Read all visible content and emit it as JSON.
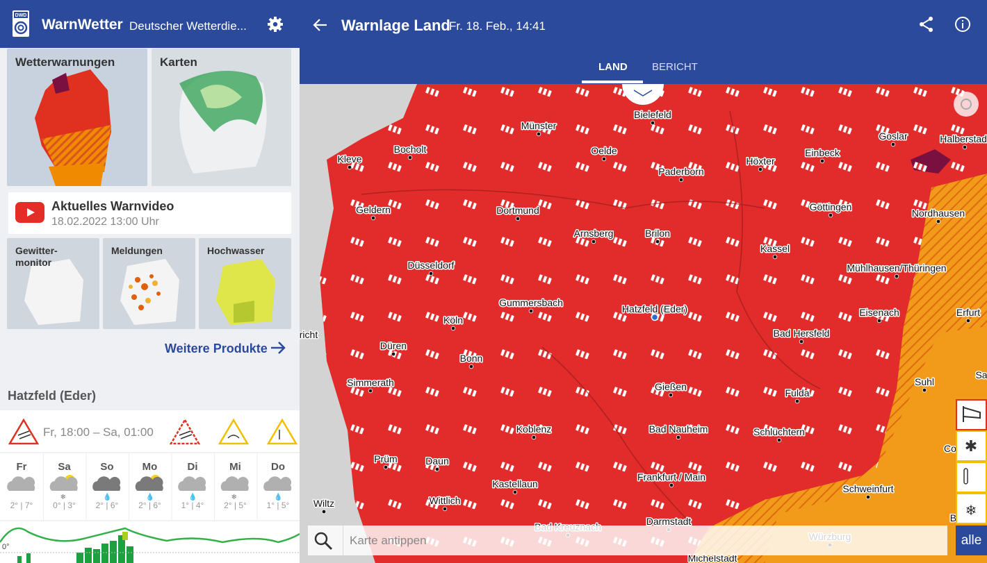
{
  "app_bar": {
    "logo": "DWD",
    "title": "WarnWetter",
    "subtitle": "Deutscher Wetterdie..."
  },
  "tiles": {
    "warnings": "Wetterwarnungen",
    "maps": "Karten",
    "video_title": "Aktuelles Warnvideo",
    "video_date": "18.02.2022 13:00 Uhr",
    "thunder_1": "Gewitter-",
    "thunder_2": "monitor",
    "reports": "Meldungen",
    "flood": "Hochwasser"
  },
  "more_products": "Weitere Produkte",
  "location": {
    "name": "Hatzfeld (Eder)",
    "warning_time": "Fr, 18:00 – Sa, 01:00",
    "days": [
      {
        "day": "Fr",
        "temps": "2° | 7°"
      },
      {
        "day": "Sa",
        "temps": "0° | 3°"
      },
      {
        "day": "So",
        "temps": "2° | 6°"
      },
      {
        "day": "Mo",
        "temps": "2° | 6°"
      },
      {
        "day": "Di",
        "temps": "1° | 4°"
      },
      {
        "day": "Mi",
        "temps": "2° | 5°"
      },
      {
        "day": "Do",
        "temps": "1° | 5°"
      }
    ],
    "chart_label": "0°"
  },
  "header": {
    "title": "Warnlage Land",
    "date": "Fr. 18. Feb., 14:41"
  },
  "tabs": [
    "LAND",
    "BERICHT"
  ],
  "map": {
    "cities": [
      "Bielefeld",
      "Münster",
      "Bocholt",
      "Oelde",
      "Kleve",
      "Paderborn",
      "Höxter",
      "Einbeck",
      "Goslar",
      "Halberstadt",
      "Geldern",
      "Dortmund",
      "Göttingen",
      "Nordhausen",
      "Arnsberg",
      "Brilon",
      "Kassel",
      "Düsseldorf",
      "Mühlhausen/Thüringen",
      "Gummersbach",
      "Hatzfeld (Eder)",
      "Eisenach",
      "Erfurt",
      "Köln",
      "Bad Hersfeld",
      "Düren",
      "Bonn",
      "Simmerath",
      "Gießen",
      "Fulda",
      "Suhl",
      "Koblenz",
      "Bad Nauheim",
      "Schlüchtern",
      "Prüm",
      "Daun",
      "Frankfurt / Main",
      "Kastellaun",
      "Schweinfurt",
      "Wittlich",
      "Wiltz",
      "Darmstadt",
      "Bad Kreuznach",
      "Würzburg",
      "Michelstadt",
      "richt",
      "Co",
      "Bamb",
      "Sa"
    ],
    "search_placeholder": "Karte antippen",
    "filter_all": "alle"
  }
}
